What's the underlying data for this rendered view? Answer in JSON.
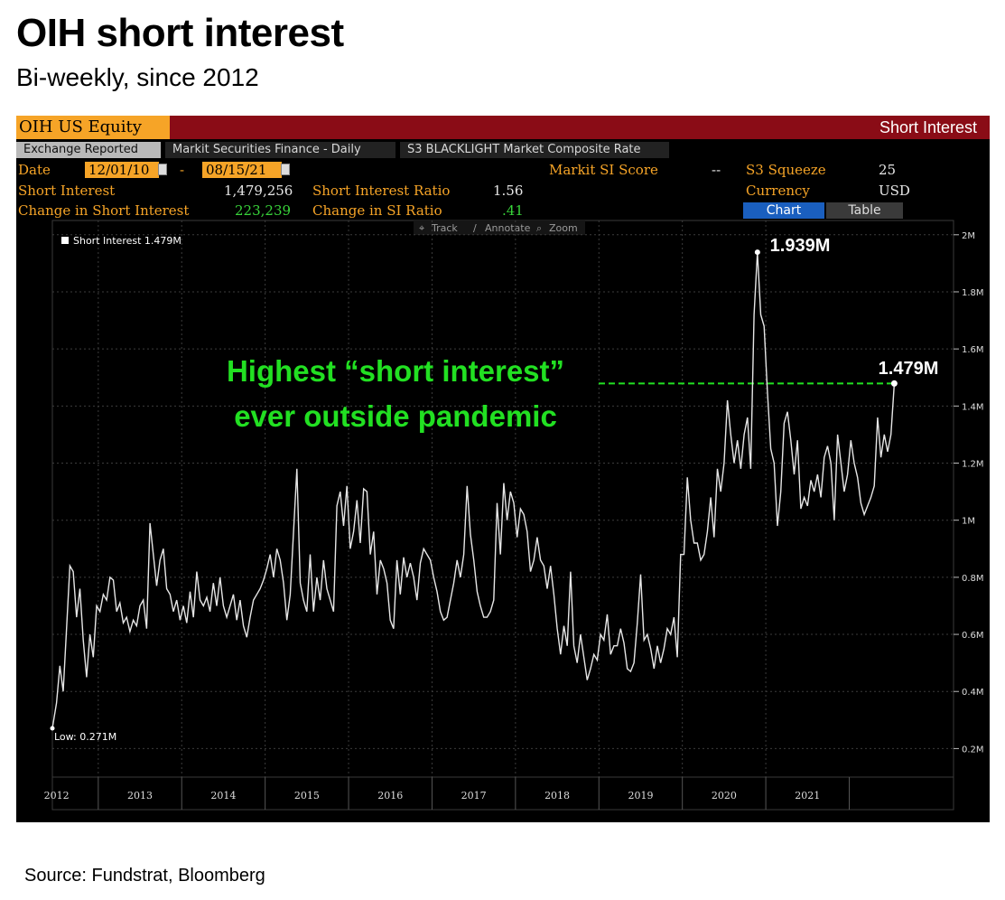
{
  "header": {
    "title": "OIH short interest",
    "subtitle": "Bi-weekly, since 2012"
  },
  "terminal": {
    "ticker": "OIH US Equity",
    "panel_title": "Short Interest",
    "tabs": [
      "Exchange Reported",
      "Markit Securities Finance - Daily",
      "S3 BLACKLIGHT Market Composite Rate"
    ],
    "date_label": "Date",
    "date_from": "12/01/10",
    "date_sep": "-",
    "date_to": "08/15/21",
    "markit_label": "Markit SI Score",
    "markit_value": "--",
    "s3_label": "S3 Squeeze",
    "s3_value": "25",
    "si_label": "Short Interest",
    "si_value": "1,479,256",
    "ratio_label": "Short Interest Ratio",
    "ratio_value": "1.56",
    "currency_label": "Currency",
    "currency_value": "USD",
    "chg_label": "Change in Short Interest",
    "chg_value": "223,239",
    "chg_ratio_label": "Change in SI Ratio",
    "chg_ratio_value": ".41",
    "chart_btn": "Chart",
    "table_btn": "Table",
    "tools": [
      "Track",
      "Annotate",
      "Zoom"
    ]
  },
  "chart_data": {
    "type": "line",
    "title": "",
    "xlabel": "",
    "ylabel": "",
    "legend": "Short Interest 1.479M",
    "legend_position": "top-left",
    "x_ticks": [
      "2012",
      "2013",
      "2014",
      "2015",
      "2016",
      "2017",
      "2018",
      "2019",
      "2020",
      "2021"
    ],
    "y_ticks": [
      "0.2M",
      "0.4M",
      "0.6M",
      "0.8M",
      "1M",
      "1.2M",
      "1.4M",
      "1.6M",
      "1.8M",
      "2M"
    ],
    "ylim": [
      0.1,
      2.05
    ],
    "xlim": [
      2011.95,
      2022.75
    ],
    "grid": true,
    "series": [
      {
        "name": "Short Interest",
        "values": [
          [
            2011.95,
            0.271
          ],
          [
            2012.0,
            0.36
          ],
          [
            2012.04,
            0.49
          ],
          [
            2012.08,
            0.4
          ],
          [
            2012.12,
            0.62
          ],
          [
            2012.16,
            0.84
          ],
          [
            2012.2,
            0.82
          ],
          [
            2012.24,
            0.66
          ],
          [
            2012.28,
            0.76
          ],
          [
            2012.32,
            0.58
          ],
          [
            2012.36,
            0.45
          ],
          [
            2012.4,
            0.6
          ],
          [
            2012.44,
            0.52
          ],
          [
            2012.48,
            0.7
          ],
          [
            2012.52,
            0.68
          ],
          [
            2012.56,
            0.74
          ],
          [
            2012.6,
            0.72
          ],
          [
            2012.64,
            0.8
          ],
          [
            2012.68,
            0.79
          ],
          [
            2012.72,
            0.68
          ],
          [
            2012.76,
            0.71
          ],
          [
            2012.8,
            0.64
          ],
          [
            2012.84,
            0.66
          ],
          [
            2012.88,
            0.61
          ],
          [
            2012.92,
            0.65
          ],
          [
            2012.96,
            0.63
          ],
          [
            2013.0,
            0.7
          ],
          [
            2013.04,
            0.72
          ],
          [
            2013.08,
            0.62
          ],
          [
            2013.12,
            0.99
          ],
          [
            2013.16,
            0.88
          ],
          [
            2013.2,
            0.77
          ],
          [
            2013.24,
            0.86
          ],
          [
            2013.28,
            0.9
          ],
          [
            2013.32,
            0.76
          ],
          [
            2013.36,
            0.74
          ],
          [
            2013.4,
            0.68
          ],
          [
            2013.44,
            0.72
          ],
          [
            2013.48,
            0.65
          ],
          [
            2013.52,
            0.7
          ],
          [
            2013.56,
            0.64
          ],
          [
            2013.6,
            0.75
          ],
          [
            2013.64,
            0.66
          ],
          [
            2013.68,
            0.82
          ],
          [
            2013.72,
            0.72
          ],
          [
            2013.76,
            0.7
          ],
          [
            2013.8,
            0.73
          ],
          [
            2013.84,
            0.68
          ],
          [
            2013.88,
            0.78
          ],
          [
            2013.92,
            0.7
          ],
          [
            2013.96,
            0.8
          ],
          [
            2014.0,
            0.7
          ],
          [
            2014.04,
            0.66
          ],
          [
            2014.08,
            0.7
          ],
          [
            2014.12,
            0.74
          ],
          [
            2014.16,
            0.65
          ],
          [
            2014.2,
            0.72
          ],
          [
            2014.24,
            0.63
          ],
          [
            2014.28,
            0.59
          ],
          [
            2014.32,
            0.66
          ],
          [
            2014.36,
            0.72
          ],
          [
            2014.4,
            0.74
          ],
          [
            2014.44,
            0.76
          ],
          [
            2014.48,
            0.79
          ],
          [
            2014.52,
            0.83
          ],
          [
            2014.56,
            0.88
          ],
          [
            2014.6,
            0.8
          ],
          [
            2014.64,
            0.9
          ],
          [
            2014.68,
            0.86
          ],
          [
            2014.72,
            0.78
          ],
          [
            2014.76,
            0.65
          ],
          [
            2014.8,
            0.74
          ],
          [
            2014.84,
            0.96
          ],
          [
            2014.88,
            1.18
          ],
          [
            2014.92,
            0.78
          ],
          [
            2014.96,
            0.72
          ],
          [
            2015.0,
            0.68
          ],
          [
            2015.04,
            0.88
          ],
          [
            2015.08,
            0.68
          ],
          [
            2015.12,
            0.8
          ],
          [
            2015.16,
            0.72
          ],
          [
            2015.2,
            0.86
          ],
          [
            2015.24,
            0.76
          ],
          [
            2015.28,
            0.72
          ],
          [
            2015.32,
            0.68
          ],
          [
            2015.36,
            1.05
          ],
          [
            2015.4,
            1.1
          ],
          [
            2015.44,
            0.98
          ],
          [
            2015.48,
            1.12
          ],
          [
            2015.52,
            0.9
          ],
          [
            2015.56,
            0.96
          ],
          [
            2015.6,
            1.07
          ],
          [
            2015.64,
            0.92
          ],
          [
            2015.68,
            1.11
          ],
          [
            2015.72,
            1.1
          ],
          [
            2015.76,
            0.88
          ],
          [
            2015.8,
            0.96
          ],
          [
            2015.84,
            0.74
          ],
          [
            2015.88,
            0.86
          ],
          [
            2015.92,
            0.83
          ],
          [
            2015.96,
            0.78
          ],
          [
            2016.0,
            0.65
          ],
          [
            2016.04,
            0.62
          ],
          [
            2016.08,
            0.86
          ],
          [
            2016.12,
            0.74
          ],
          [
            2016.16,
            0.87
          ],
          [
            2016.2,
            0.8
          ],
          [
            2016.24,
            0.85
          ],
          [
            2016.28,
            0.8
          ],
          [
            2016.32,
            0.72
          ],
          [
            2016.36,
            0.85
          ],
          [
            2016.4,
            0.9
          ],
          [
            2016.44,
            0.88
          ],
          [
            2016.48,
            0.86
          ],
          [
            2016.52,
            0.8
          ],
          [
            2016.56,
            0.75
          ],
          [
            2016.6,
            0.68
          ],
          [
            2016.64,
            0.65
          ],
          [
            2016.68,
            0.66
          ],
          [
            2016.72,
            0.72
          ],
          [
            2016.76,
            0.78
          ],
          [
            2016.8,
            0.86
          ],
          [
            2016.84,
            0.8
          ],
          [
            2016.88,
            0.88
          ],
          [
            2016.92,
            1.12
          ],
          [
            2016.96,
            0.95
          ],
          [
            2017.0,
            0.86
          ],
          [
            2017.04,
            0.75
          ],
          [
            2017.08,
            0.7
          ],
          [
            2017.12,
            0.66
          ],
          [
            2017.16,
            0.66
          ],
          [
            2017.2,
            0.68
          ],
          [
            2017.24,
            0.72
          ],
          [
            2017.28,
            1.06
          ],
          [
            2017.32,
            0.88
          ],
          [
            2017.36,
            1.13
          ],
          [
            2017.4,
            1.0
          ],
          [
            2017.44,
            1.1
          ],
          [
            2017.48,
            1.06
          ],
          [
            2017.52,
            0.94
          ],
          [
            2017.56,
            1.04
          ],
          [
            2017.6,
            1.02
          ],
          [
            2017.64,
            0.96
          ],
          [
            2017.68,
            0.82
          ],
          [
            2017.72,
            0.86
          ],
          [
            2017.76,
            0.94
          ],
          [
            2017.8,
            0.86
          ],
          [
            2017.84,
            0.84
          ],
          [
            2017.88,
            0.76
          ],
          [
            2017.92,
            0.84
          ],
          [
            2017.96,
            0.74
          ],
          [
            2018.0,
            0.62
          ],
          [
            2018.04,
            0.53
          ],
          [
            2018.08,
            0.63
          ],
          [
            2018.12,
            0.56
          ],
          [
            2018.16,
            0.82
          ],
          [
            2018.2,
            0.56
          ],
          [
            2018.24,
            0.5
          ],
          [
            2018.28,
            0.6
          ],
          [
            2018.32,
            0.52
          ],
          [
            2018.36,
            0.44
          ],
          [
            2018.4,
            0.48
          ],
          [
            2018.44,
            0.53
          ],
          [
            2018.48,
            0.51
          ],
          [
            2018.52,
            0.6
          ],
          [
            2018.56,
            0.58
          ],
          [
            2018.6,
            0.67
          ],
          [
            2018.64,
            0.53
          ],
          [
            2018.68,
            0.56
          ],
          [
            2018.72,
            0.56
          ],
          [
            2018.76,
            0.62
          ],
          [
            2018.8,
            0.57
          ],
          [
            2018.84,
            0.48
          ],
          [
            2018.88,
            0.47
          ],
          [
            2018.92,
            0.5
          ],
          [
            2018.96,
            0.64
          ],
          [
            2019.0,
            0.81
          ],
          [
            2019.04,
            0.58
          ],
          [
            2019.08,
            0.6
          ],
          [
            2019.12,
            0.55
          ],
          [
            2019.16,
            0.48
          ],
          [
            2019.2,
            0.56
          ],
          [
            2019.24,
            0.5
          ],
          [
            2019.28,
            0.55
          ],
          [
            2019.32,
            0.62
          ],
          [
            2019.36,
            0.6
          ],
          [
            2019.4,
            0.66
          ],
          [
            2019.44,
            0.52
          ],
          [
            2019.48,
            0.88
          ],
          [
            2019.52,
            0.88
          ],
          [
            2019.56,
            1.15
          ],
          [
            2019.6,
            1.0
          ],
          [
            2019.64,
            0.92
          ],
          [
            2019.68,
            0.92
          ],
          [
            2019.72,
            0.86
          ],
          [
            2019.76,
            0.88
          ],
          [
            2019.8,
            0.96
          ],
          [
            2019.84,
            1.08
          ],
          [
            2019.88,
            0.94
          ],
          [
            2019.92,
            1.18
          ],
          [
            2019.96,
            1.1
          ],
          [
            2020.0,
            1.2
          ],
          [
            2020.04,
            1.42
          ],
          [
            2020.08,
            1.3
          ],
          [
            2020.12,
            1.2
          ],
          [
            2020.16,
            1.28
          ],
          [
            2020.2,
            1.18
          ],
          [
            2020.24,
            1.3
          ],
          [
            2020.28,
            1.36
          ],
          [
            2020.32,
            1.18
          ],
          [
            2020.36,
            1.72
          ],
          [
            2020.4,
            1.939
          ],
          [
            2020.44,
            1.72
          ],
          [
            2020.48,
            1.68
          ],
          [
            2020.52,
            1.45
          ],
          [
            2020.56,
            1.25
          ],
          [
            2020.6,
            1.2
          ],
          [
            2020.64,
            0.98
          ],
          [
            2020.68,
            1.1
          ],
          [
            2020.72,
            1.34
          ],
          [
            2020.76,
            1.38
          ],
          [
            2020.8,
            1.28
          ],
          [
            2020.84,
            1.16
          ],
          [
            2020.88,
            1.28
          ],
          [
            2020.92,
            1.04
          ],
          [
            2020.96,
            1.08
          ],
          [
            2021.0,
            1.05
          ],
          [
            2021.04,
            1.14
          ],
          [
            2021.08,
            1.1
          ],
          [
            2021.12,
            1.16
          ],
          [
            2021.16,
            1.08
          ],
          [
            2021.2,
            1.22
          ],
          [
            2021.24,
            1.26
          ],
          [
            2021.28,
            1.2
          ],
          [
            2021.32,
            1.0
          ],
          [
            2021.36,
            1.3
          ],
          [
            2021.4,
            1.2
          ],
          [
            2021.44,
            1.1
          ],
          [
            2021.48,
            1.16
          ],
          [
            2021.52,
            1.28
          ],
          [
            2021.56,
            1.2
          ],
          [
            2021.6,
            1.15
          ],
          [
            2021.64,
            1.06
          ],
          [
            2021.68,
            1.02
          ],
          [
            2021.72,
            1.05
          ],
          [
            2021.76,
            1.08
          ],
          [
            2021.8,
            1.12
          ],
          [
            2021.84,
            1.36
          ],
          [
            2021.88,
            1.22
          ],
          [
            2021.92,
            1.3
          ],
          [
            2021.96,
            1.24
          ],
          [
            2022.0,
            1.3
          ],
          [
            2022.04,
            1.479
          ]
        ]
      }
    ],
    "annotations": {
      "peak_label": "1.939M",
      "last_label": "1.479M",
      "low_label": "Low: 0.271M",
      "headline_line1": "Highest “short interest”",
      "headline_line2": "ever outside pandemic",
      "reference_value": 1.479
    },
    "colors": {
      "line": "#e6e6e6",
      "grid": "#3c3c3c",
      "headline": "#22e022",
      "reference": "#22e022"
    }
  },
  "footer": {
    "source": "Source: Fundstrat,  Bloomberg"
  }
}
